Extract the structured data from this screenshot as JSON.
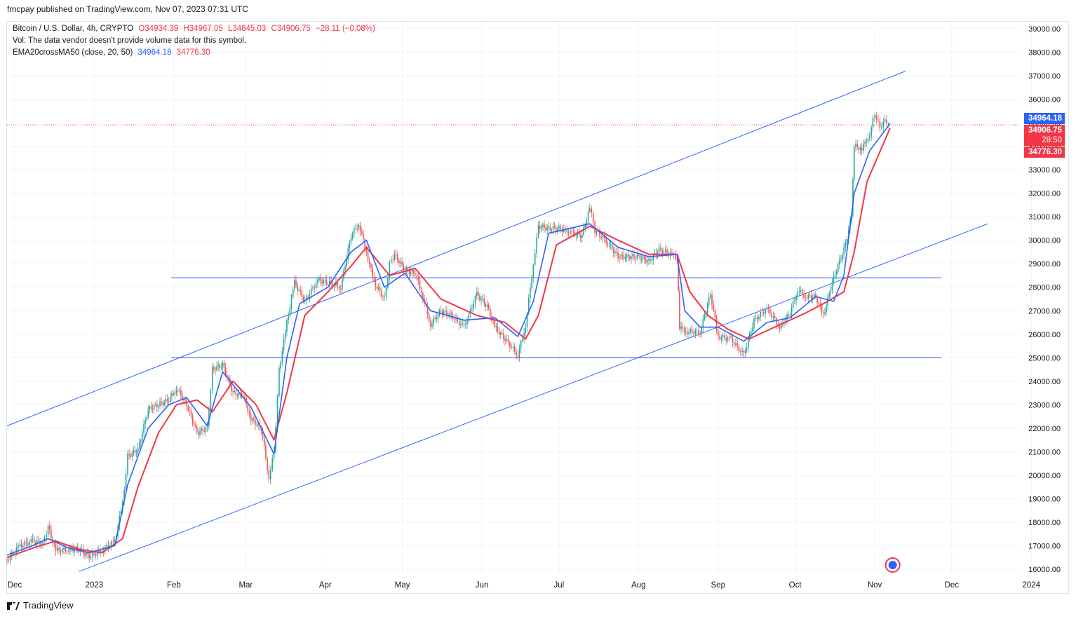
{
  "header": {
    "published": "fmcpay published on TradingView.com, Nov 07, 2023 07:31 UTC"
  },
  "legend": {
    "symbol": "Bitcoin / U.S. Dollar, 4h, CRYPTO",
    "open": "O34934.39",
    "high": "H34967.05",
    "low": "L34845.03",
    "close": "C34906.75",
    "change": "−28.11 (−0.08%)",
    "vol": "Vol: The data vendor doesn't provide volume data for this symbol.",
    "indicator": "EMA20crossMA50 (close, 20, 50)",
    "ema_value": "34964.18",
    "ma_value": "34776.30"
  },
  "price_tags": {
    "ema": "34964.18",
    "last": "34906.75",
    "countdown": "28:50",
    "ma": "34776.30"
  },
  "footer": {
    "brand": "TradingView"
  },
  "colors": {
    "ema": "#2962ff",
    "ma": "#f23645",
    "up": "#26a69a",
    "down": "#ef5350",
    "lines": "#2962ff"
  },
  "chart_data": {
    "type": "line",
    "title": "Bitcoin / U.S. Dollar, 4h, CRYPTO",
    "x_ticks": [
      "Dec",
      "2023",
      "Feb",
      "Mar",
      "Apr",
      "May",
      "Jun",
      "Jul",
      "Aug",
      "Sep",
      "Oct",
      "Nov",
      "Dec",
      "2024"
    ],
    "y_ticks": [
      "16000.00",
      "17000.00",
      "18000.00",
      "19000.00",
      "20000.00",
      "21000.00",
      "22000.00",
      "23000.00",
      "24000.00",
      "25000.00",
      "26000.00",
      "27000.00",
      "28000.00",
      "29000.00",
      "30000.00",
      "31000.00",
      "32000.00",
      "33000.00",
      "34000.00",
      "35000.00",
      "36000.00",
      "37000.00",
      "38000.00",
      "39000.00"
    ],
    "ylim": [
      15700,
      39300
    ],
    "grid": true,
    "series": [
      {
        "name": "Price",
        "points": [
          [
            "2022-11-28",
            16400
          ],
          [
            "2022-12-03",
            17000
          ],
          [
            "2022-12-08",
            17200
          ],
          [
            "2022-12-12",
            17100
          ],
          [
            "2022-12-14",
            17800
          ],
          [
            "2022-12-17",
            16800
          ],
          [
            "2022-12-22",
            16850
          ],
          [
            "2022-12-26",
            16850
          ],
          [
            "2022-12-30",
            16550
          ],
          [
            "2023-01-04",
            16800
          ],
          [
            "2023-01-09",
            17200
          ],
          [
            "2023-01-12",
            18800
          ],
          [
            "2023-01-14",
            20800
          ],
          [
            "2023-01-18",
            21100
          ],
          [
            "2023-01-22",
            22800
          ],
          [
            "2023-01-26",
            23000
          ],
          [
            "2023-01-30",
            23200
          ],
          [
            "2023-02-02",
            23700
          ],
          [
            "2023-02-06",
            23000
          ],
          [
            "2023-02-10",
            21800
          ],
          [
            "2023-02-14",
            22000
          ],
          [
            "2023-02-16",
            24500
          ],
          [
            "2023-02-20",
            24700
          ],
          [
            "2023-02-24",
            23500
          ],
          [
            "2023-02-28",
            23400
          ],
          [
            "2023-03-03",
            22400
          ],
          [
            "2023-03-07",
            22000
          ],
          [
            "2023-03-10",
            19900
          ],
          [
            "2023-03-12",
            21000
          ],
          [
            "2023-03-14",
            24500
          ],
          [
            "2023-03-17",
            26500
          ],
          [
            "2023-03-20",
            28200
          ],
          [
            "2023-03-24",
            27400
          ],
          [
            "2023-03-29",
            28300
          ],
          [
            "2023-04-02",
            28200
          ],
          [
            "2023-04-07",
            28000
          ],
          [
            "2023-04-11",
            30200
          ],
          [
            "2023-04-14",
            30700
          ],
          [
            "2023-04-17",
            29500
          ],
          [
            "2023-04-20",
            28200
          ],
          [
            "2023-04-24",
            27500
          ],
          [
            "2023-04-26",
            29000
          ],
          [
            "2023-04-28",
            29400
          ],
          [
            "2023-05-02",
            28700
          ],
          [
            "2023-05-06",
            28600
          ],
          [
            "2023-05-09",
            27600
          ],
          [
            "2023-05-12",
            26400
          ],
          [
            "2023-05-16",
            27000
          ],
          [
            "2023-05-20",
            26800
          ],
          [
            "2023-05-25",
            26300
          ],
          [
            "2023-05-30",
            27700
          ],
          [
            "2023-06-03",
            27200
          ],
          [
            "2023-06-06",
            26300
          ],
          [
            "2023-06-10",
            25800
          ],
          [
            "2023-06-15",
            25100
          ],
          [
            "2023-06-18",
            26400
          ],
          [
            "2023-06-21",
            29000
          ],
          [
            "2023-06-23",
            30600
          ],
          [
            "2023-06-27",
            30500
          ],
          [
            "2023-07-01",
            30500
          ],
          [
            "2023-07-06",
            30300
          ],
          [
            "2023-07-10",
            30200
          ],
          [
            "2023-07-13",
            31400
          ],
          [
            "2023-07-15",
            30400
          ],
          [
            "2023-07-20",
            29900
          ],
          [
            "2023-07-24",
            29300
          ],
          [
            "2023-07-28",
            29300
          ],
          [
            "2023-08-01",
            29300
          ],
          [
            "2023-08-05",
            29100
          ],
          [
            "2023-08-09",
            29600
          ],
          [
            "2023-08-14",
            29400
          ],
          [
            "2023-08-16",
            29200
          ],
          [
            "2023-08-17",
            26300
          ],
          [
            "2023-08-20",
            26100
          ],
          [
            "2023-08-25",
            26100
          ],
          [
            "2023-08-29",
            27700
          ],
          [
            "2023-09-01",
            25900
          ],
          [
            "2023-09-06",
            25800
          ],
          [
            "2023-09-11",
            25100
          ],
          [
            "2023-09-15",
            26600
          ],
          [
            "2023-09-20",
            27100
          ],
          [
            "2023-09-25",
            26300
          ],
          [
            "2023-09-29",
            26900
          ],
          [
            "2023-10-02",
            27900
          ],
          [
            "2023-10-05",
            27600
          ],
          [
            "2023-10-09",
            27600
          ],
          [
            "2023-10-12",
            26800
          ],
          [
            "2023-10-16",
            28400
          ],
          [
            "2023-10-20",
            29600
          ],
          [
            "2023-10-23",
            31000
          ],
          [
            "2023-10-24",
            34000
          ],
          [
            "2023-10-27",
            33900
          ],
          [
            "2023-10-30",
            34500
          ],
          [
            "2023-11-01",
            35400
          ],
          [
            "2023-11-03",
            34800
          ],
          [
            "2023-11-05",
            35100
          ],
          [
            "2023-11-07",
            34907
          ]
        ]
      },
      {
        "name": "EMA20",
        "points": [
          [
            "2022-11-28",
            16600
          ],
          [
            "2022-12-08",
            17000
          ],
          [
            "2022-12-14",
            17300
          ],
          [
            "2022-12-22",
            16900
          ],
          [
            "2022-12-30",
            16700
          ],
          [
            "2023-01-09",
            17000
          ],
          [
            "2023-01-14",
            19600
          ],
          [
            "2023-01-22",
            22000
          ],
          [
            "2023-01-30",
            23000
          ],
          [
            "2023-02-06",
            23300
          ],
          [
            "2023-02-14",
            22100
          ],
          [
            "2023-02-20",
            24400
          ],
          [
            "2023-03-03",
            22900
          ],
          [
            "2023-03-12",
            20900
          ],
          [
            "2023-03-17",
            25000
          ],
          [
            "2023-03-22",
            27300
          ],
          [
            "2023-04-02",
            28000
          ],
          [
            "2023-04-11",
            29500
          ],
          [
            "2023-04-17",
            30000
          ],
          [
            "2023-04-24",
            28000
          ],
          [
            "2023-05-02",
            28600
          ],
          [
            "2023-05-12",
            27000
          ],
          [
            "2023-05-25",
            26600
          ],
          [
            "2023-06-06",
            26700
          ],
          [
            "2023-06-15",
            25900
          ],
          [
            "2023-06-21",
            27400
          ],
          [
            "2023-06-27",
            30300
          ],
          [
            "2023-07-13",
            30700
          ],
          [
            "2023-07-24",
            29700
          ],
          [
            "2023-08-05",
            29300
          ],
          [
            "2023-08-16",
            29400
          ],
          [
            "2023-08-19",
            27000
          ],
          [
            "2023-08-25",
            26300
          ],
          [
            "2023-09-01",
            26300
          ],
          [
            "2023-09-11",
            25700
          ],
          [
            "2023-09-20",
            26500
          ],
          [
            "2023-09-29",
            26700
          ],
          [
            "2023-10-09",
            27600
          ],
          [
            "2023-10-16",
            27400
          ],
          [
            "2023-10-20",
            28500
          ],
          [
            "2023-10-24",
            32000
          ],
          [
            "2023-10-30",
            33800
          ],
          [
            "2023-11-07",
            34964
          ]
        ]
      },
      {
        "name": "MA50",
        "points": [
          [
            "2022-11-28",
            16500
          ],
          [
            "2022-12-08",
            16900
          ],
          [
            "2022-12-17",
            17200
          ],
          [
            "2022-12-26",
            16850
          ],
          [
            "2023-01-04",
            16700
          ],
          [
            "2023-01-12",
            17300
          ],
          [
            "2023-01-18",
            19500
          ],
          [
            "2023-01-26",
            21800
          ],
          [
            "2023-02-02",
            23000
          ],
          [
            "2023-02-10",
            23200
          ],
          [
            "2023-02-16",
            22700
          ],
          [
            "2023-02-24",
            24000
          ],
          [
            "2023-03-05",
            23000
          ],
          [
            "2023-03-12",
            21500
          ],
          [
            "2023-03-17",
            23500
          ],
          [
            "2023-03-24",
            26800
          ],
          [
            "2023-04-02",
            27800
          ],
          [
            "2023-04-11",
            28900
          ],
          [
            "2023-04-17",
            29700
          ],
          [
            "2023-04-26",
            28500
          ],
          [
            "2023-05-06",
            28800
          ],
          [
            "2023-05-16",
            27500
          ],
          [
            "2023-05-30",
            26800
          ],
          [
            "2023-06-10",
            26500
          ],
          [
            "2023-06-18",
            25800
          ],
          [
            "2023-06-23",
            26800
          ],
          [
            "2023-06-30",
            29800
          ],
          [
            "2023-07-13",
            30600
          ],
          [
            "2023-07-24",
            30000
          ],
          [
            "2023-08-05",
            29400
          ],
          [
            "2023-08-16",
            29400
          ],
          [
            "2023-08-21",
            27800
          ],
          [
            "2023-08-28",
            26800
          ],
          [
            "2023-09-05",
            26200
          ],
          [
            "2023-09-13",
            25800
          ],
          [
            "2023-09-25",
            26400
          ],
          [
            "2023-10-05",
            26900
          ],
          [
            "2023-10-12",
            27300
          ],
          [
            "2023-10-20",
            27800
          ],
          [
            "2023-10-24",
            29500
          ],
          [
            "2023-10-29",
            32500
          ],
          [
            "2023-11-07",
            34776
          ]
        ]
      }
    ],
    "annotations": {
      "channel_upper": [
        [
          "2022-11-28",
          22100
        ],
        [
          "2023-11-13",
          37200
        ]
      ],
      "channel_lower": [
        [
          "2022-12-26",
          15900
        ],
        [
          "2023-12-15",
          30700
        ]
      ],
      "horizontal_resistance": {
        "from": "2023-01-31",
        "to": "2023-11-27",
        "y": 28400
      },
      "horizontal_support": {
        "from": "2023-01-31",
        "to": "2023-11-27",
        "y": 25000
      }
    }
  }
}
